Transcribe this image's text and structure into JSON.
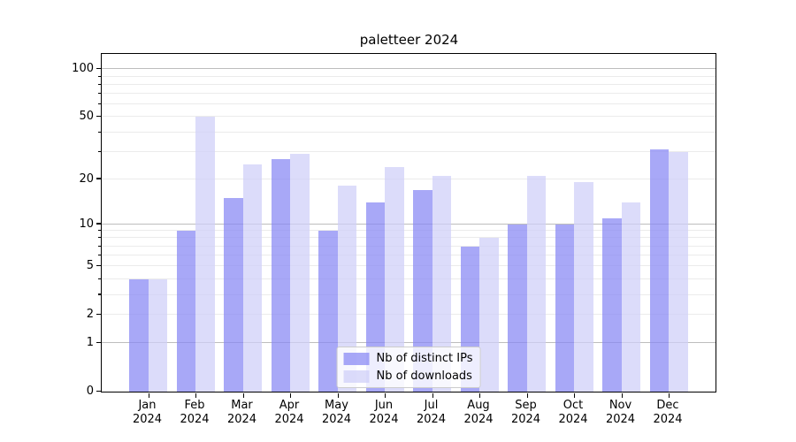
{
  "colors": {
    "background": "#ffffff",
    "major_grid": "#bdbdbd",
    "minor_grid": "#ebebeb",
    "spine": "#000000",
    "text": "#000000",
    "series_dark": "rgba(134,134,244,0.72)",
    "series_light": "rgba(206,206,248,0.72)"
  },
  "chart_data": {
    "type": "bar",
    "title": "paletteer 2024",
    "xlabel": "",
    "ylabel": "",
    "categories": [
      "Jan 2024",
      "Feb 2024",
      "Mar 2024",
      "Apr 2024",
      "May 2024",
      "Jun 2024",
      "Jul 2024",
      "Aug 2024",
      "Sep 2024",
      "Oct 2024",
      "Nov 2024",
      "Dec 2024"
    ],
    "series": [
      {
        "name": "Nb of distinct IPs",
        "color": "rgba(134,134,244,0.72)",
        "values": [
          4,
          9,
          15,
          27,
          9,
          14,
          17,
          7,
          10,
          10,
          11,
          31
        ]
      },
      {
        "name": "Nb of downloads",
        "color": "rgba(206,206,248,0.72)",
        "values": [
          4,
          50,
          25,
          29,
          18,
          24,
          21,
          8,
          21,
          19,
          14,
          30
        ]
      }
    ],
    "yscale": "log1p",
    "ylim": [
      0,
      125
    ],
    "yticks": [
      0,
      1,
      2,
      5,
      10,
      20,
      50,
      100
    ],
    "gridlines": {
      "major": [
        1,
        10,
        100
      ],
      "minor": [
        2,
        3,
        4,
        5,
        6,
        7,
        8,
        9,
        20,
        30,
        40,
        50,
        60,
        70,
        80,
        90
      ]
    },
    "grid": true,
    "legend_position": "lower center"
  },
  "legend": {
    "items": [
      {
        "label": "Nb of distinct IPs"
      },
      {
        "label": "Nb of downloads"
      }
    ]
  }
}
